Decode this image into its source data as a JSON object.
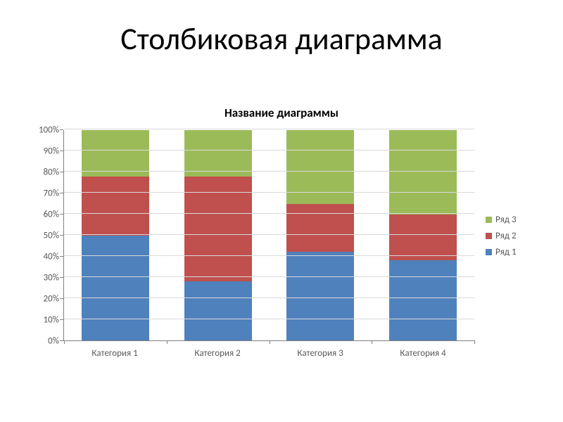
{
  "slide": {
    "title": "Столбиковая диаграмма",
    "title_fontsize": 44,
    "title_color": "#000000"
  },
  "chart": {
    "type": "stacked_bar_100",
    "title": "Название диаграммы",
    "title_fontsize": 17,
    "title_weight": "bold",
    "background_color": "#ffffff",
    "grid_color": "#d9d9d9",
    "axis_color": "#808080",
    "label_color": "#595959",
    "label_fontsize": 13,
    "y_axis": {
      "min": 0,
      "max": 100,
      "step": 10,
      "format": "percent",
      "ticks": [
        "0%",
        "10%",
        "20%",
        "30%",
        "40%",
        "50%",
        "60%",
        "70%",
        "80%",
        "90%",
        "100%"
      ]
    },
    "categories": [
      "Категория 1",
      "Категория 2",
      "Категория 3",
      "Категория 4"
    ],
    "series": [
      {
        "name": "Ряд 1",
        "color": "#4f81bd",
        "values": [
          50,
          28,
          42,
          38
        ]
      },
      {
        "name": "Ряд 2",
        "color": "#c0504d",
        "values": [
          28,
          50,
          23,
          22
        ]
      },
      {
        "name": "Ряд 3",
        "color": "#9bbb59",
        "values": [
          22,
          22,
          35,
          40
        ]
      }
    ],
    "bar_width_ratio": 0.66,
    "legend_position": "right",
    "legend_order": "reverse"
  }
}
